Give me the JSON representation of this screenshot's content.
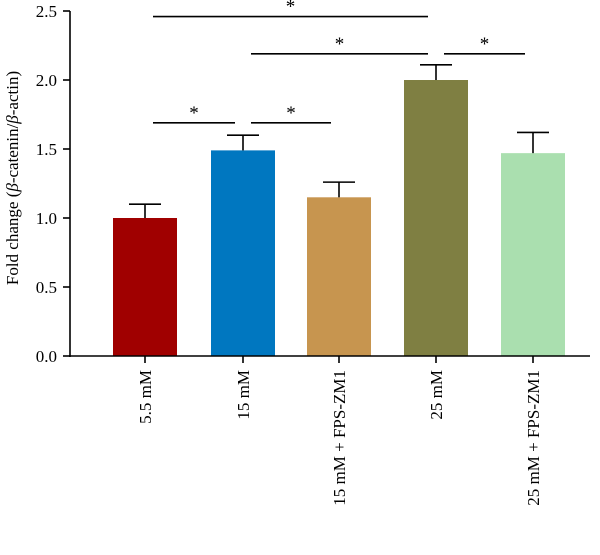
{
  "chart_data": {
    "type": "bar",
    "categories": [
      "5.5 mM",
      "15 mM",
      "15 mM + FPS-ZM1",
      "25 mM",
      "25 mM + FPS-ZM1"
    ],
    "values": [
      1.0,
      1.49,
      1.15,
      2.0,
      1.47
    ],
    "errors": [
      0.1,
      0.11,
      0.11,
      0.11,
      0.15
    ],
    "colors": [
      "#a00000",
      "#0077c0",
      "#c7954f",
      "#7f7f42",
      "#aadfaf"
    ],
    "ylabel_prefix": "Fold change (",
    "ylabel_beta1": "β",
    "ylabel_mid": "-catenin/",
    "ylabel_beta2": "β",
    "ylabel_suffix": "-actin)",
    "ylim": [
      0,
      2.5
    ],
    "yticks": [
      "0.0",
      "0.5",
      "1.0",
      "1.5",
      "2.0",
      "2.5"
    ],
    "significance": [
      {
        "from": 0,
        "to": 1,
        "y": 1.69,
        "label": "*"
      },
      {
        "from": 1,
        "to": 2,
        "y": 1.69,
        "label": "*"
      },
      {
        "from": 0,
        "to": 3,
        "y": 2.46,
        "label": "*"
      },
      {
        "from": 1,
        "to": 3,
        "y": 2.19,
        "label": "*"
      },
      {
        "from": 3,
        "to": 4,
        "y": 2.19,
        "label": "*"
      }
    ]
  }
}
